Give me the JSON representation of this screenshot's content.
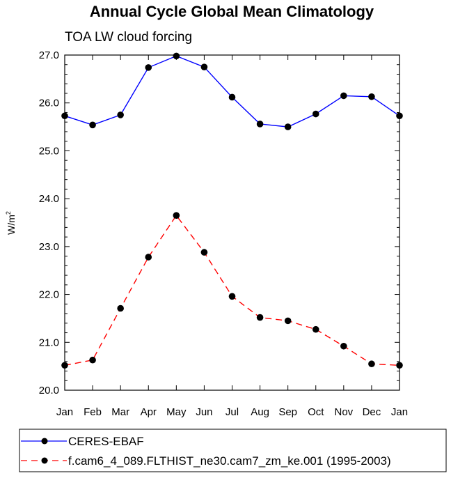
{
  "chart_data": {
    "type": "line",
    "title": "Annual Cycle Global Mean Climatology",
    "subtitle": "TOA LW cloud forcing",
    "ylabel": "W/m",
    "ylabel_sup": "2",
    "xlabel": "",
    "categories": [
      "Jan",
      "Feb",
      "Mar",
      "Apr",
      "May",
      "Jun",
      "Jul",
      "Aug",
      "Sep",
      "Oct",
      "Nov",
      "Dec",
      "Jan"
    ],
    "ylim": [
      20.0,
      27.0
    ],
    "yticks": [
      "20.0",
      "21.0",
      "22.0",
      "23.0",
      "24.0",
      "25.0",
      "26.0",
      "27.0"
    ],
    "series": [
      {
        "name": "CERES-EBAF",
        "color": "#0000ff",
        "dash": "solid",
        "values": [
          25.73,
          25.54,
          25.75,
          26.74,
          26.98,
          26.75,
          26.12,
          25.56,
          25.5,
          25.77,
          26.15,
          26.13,
          25.73
        ]
      },
      {
        "name": "f.cam6_4_089.FLTHIST_ne30.cam7_zm_ke.001 (1995-2003)",
        "color": "#ff0000",
        "dash": "dashed",
        "values": [
          20.52,
          20.63,
          21.71,
          22.78,
          23.65,
          22.88,
          21.96,
          21.52,
          21.45,
          21.27,
          20.92,
          20.55,
          20.52
        ]
      }
    ]
  }
}
